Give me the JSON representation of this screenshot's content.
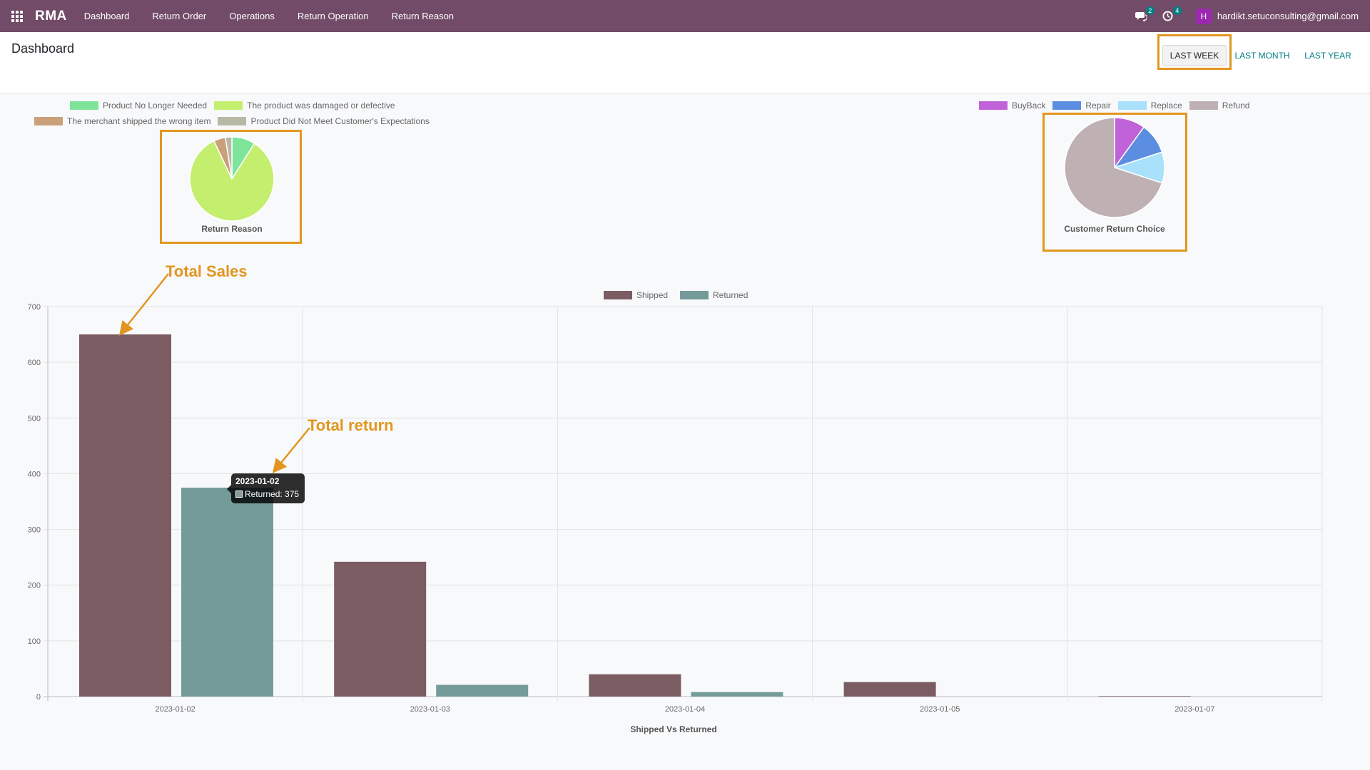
{
  "navbar": {
    "brand": "RMA",
    "items": [
      "Dashboard",
      "Return Order",
      "Operations",
      "Return Operation",
      "Return Reason"
    ],
    "messages_count": "2",
    "activities_count": "4",
    "avatar_letter": "H",
    "user_email": "hardikt.setuconsulting@gmail.com",
    "color": "#714b67"
  },
  "control_panel": {
    "title": "Dashboard",
    "periods": [
      "LAST WEEK",
      "LAST MONTH",
      "LAST YEAR"
    ],
    "active_period": "LAST WEEK"
  },
  "annotations": {
    "total_sales": "Total Sales",
    "total_return": "Total return",
    "color": "#e2961f"
  },
  "tooltip": {
    "title": "2023-01-02",
    "label": "Returned: 375"
  },
  "chart_data": [
    {
      "type": "pie",
      "title": "Return Reason",
      "labels": [
        "Product No Longer Needed",
        "The product was damaged or defective",
        "The merchant shipped the wrong item",
        "Product Did Not Meet Customer's Expectations"
      ],
      "values": [
        9,
        84,
        4.5,
        2.5
      ],
      "colors": [
        "#7ee49a",
        "#c4ef6e",
        "#c9a07a",
        "#b8b8a6"
      ]
    },
    {
      "type": "pie",
      "title": "Customer Return Choice",
      "labels": [
        "BuyBack",
        "Repair",
        "Replace",
        "Refund"
      ],
      "values": [
        10,
        10,
        10,
        70
      ],
      "colors": [
        "#c063d8",
        "#5b8ee0",
        "#a9e0fb",
        "#bfb0b4"
      ]
    },
    {
      "type": "bar",
      "title": "",
      "xlabel": "Shipped Vs Returned",
      "ylabel": "",
      "categories": [
        "2023-01-02",
        "2023-01-03",
        "2023-01-04",
        "2023-01-05",
        "2023-01-07"
      ],
      "series": [
        {
          "name": "Shipped",
          "values": [
            650,
            242,
            40,
            26,
            1
          ],
          "color": "#7a5c62"
        },
        {
          "name": "Returned",
          "values": [
            375,
            21,
            8,
            0,
            0
          ],
          "color": "#749b9a"
        }
      ],
      "ylim": [
        0,
        700
      ],
      "yticks": [
        0,
        100,
        200,
        300,
        400,
        500,
        600,
        700
      ],
      "grid": true,
      "legend": "top-center"
    }
  ]
}
